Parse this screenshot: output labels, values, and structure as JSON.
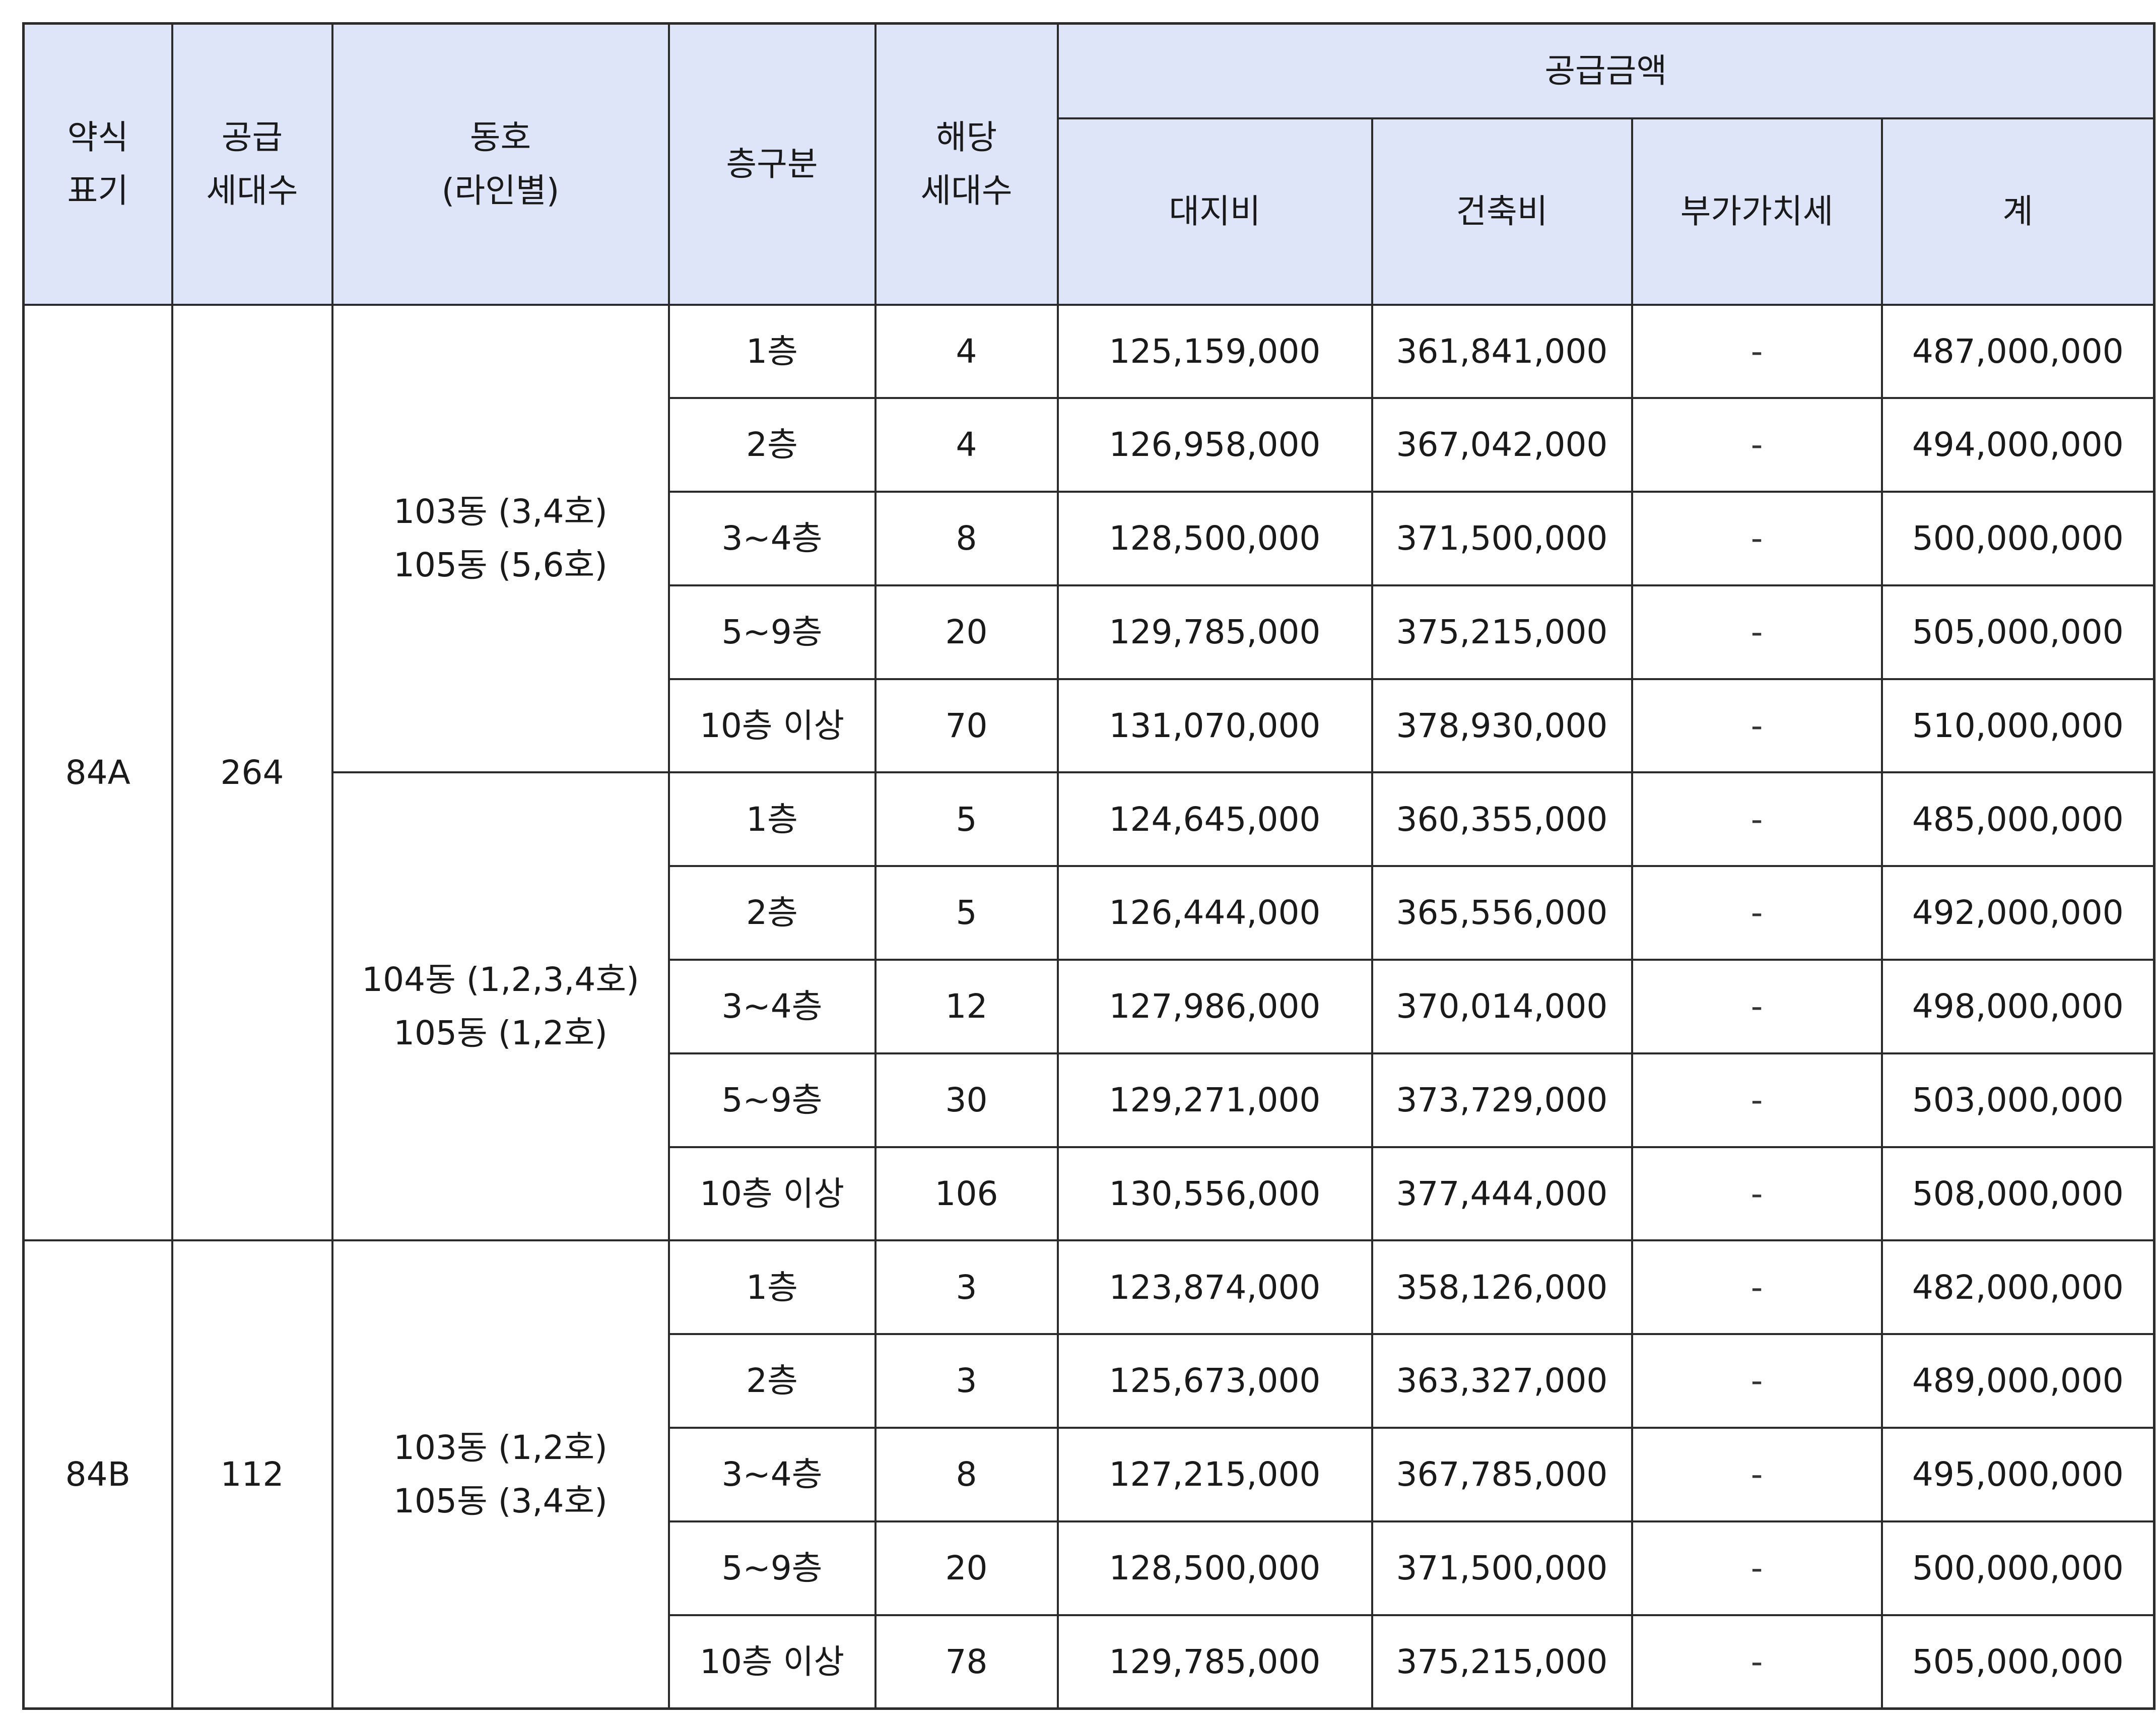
{
  "header": {
    "type_label_line1": "약식",
    "type_label_line2": "표기",
    "supply_units_line1": "공급",
    "supply_units_line2": "세대수",
    "building_line1": "동호",
    "building_line2": "(라인별)",
    "floor_group": "층구분",
    "applicable_units_line1": "해당",
    "applicable_units_line2": "세대수",
    "supply_price": "공급금액",
    "land_cost": "대지비",
    "construction_cost": "건축비",
    "vat": "부가가치세",
    "total": "계"
  },
  "types": [
    {
      "type": "84A",
      "supply_units": "264",
      "groups": [
        {
          "building_line1": "103동 (3,4호)",
          "building_line2": "105동 (5,6호)",
          "rows": [
            {
              "floor": "1층",
              "units": "4",
              "land": "125,159,000",
              "construction": "361,841,000",
              "vat": "-",
              "total": "487,000,000"
            },
            {
              "floor": "2층",
              "units": "4",
              "land": "126,958,000",
              "construction": "367,042,000",
              "vat": "-",
              "total": "494,000,000"
            },
            {
              "floor": "3~4층",
              "units": "8",
              "land": "128,500,000",
              "construction": "371,500,000",
              "vat": "-",
              "total": "500,000,000"
            },
            {
              "floor": "5~9층",
              "units": "20",
              "land": "129,785,000",
              "construction": "375,215,000",
              "vat": "-",
              "total": "505,000,000"
            },
            {
              "floor": "10층 이상",
              "units": "70",
              "land": "131,070,000",
              "construction": "378,930,000",
              "vat": "-",
              "total": "510,000,000"
            }
          ]
        },
        {
          "building_line1": "104동 (1,2,3,4호)",
          "building_line2": "105동 (1,2호)",
          "rows": [
            {
              "floor": "1층",
              "units": "5",
              "land": "124,645,000",
              "construction": "360,355,000",
              "vat": "-",
              "total": "485,000,000"
            },
            {
              "floor": "2층",
              "units": "5",
              "land": "126,444,000",
              "construction": "365,556,000",
              "vat": "-",
              "total": "492,000,000"
            },
            {
              "floor": "3~4층",
              "units": "12",
              "land": "127,986,000",
              "construction": "370,014,000",
              "vat": "-",
              "total": "498,000,000"
            },
            {
              "floor": "5~9층",
              "units": "30",
              "land": "129,271,000",
              "construction": "373,729,000",
              "vat": "-",
              "total": "503,000,000"
            },
            {
              "floor": "10층 이상",
              "units": "106",
              "land": "130,556,000",
              "construction": "377,444,000",
              "vat": "-",
              "total": "508,000,000"
            }
          ]
        }
      ]
    },
    {
      "type": "84B",
      "supply_units": "112",
      "groups": [
        {
          "building_line1": "103동 (1,2호)",
          "building_line2": "105동 (3,4호)",
          "rows": [
            {
              "floor": "1층",
              "units": "3",
              "land": "123,874,000",
              "construction": "358,126,000",
              "vat": "-",
              "total": "482,000,000"
            },
            {
              "floor": "2층",
              "units": "3",
              "land": "125,673,000",
              "construction": "363,327,000",
              "vat": "-",
              "total": "489,000,000"
            },
            {
              "floor": "3~4층",
              "units": "8",
              "land": "127,215,000",
              "construction": "367,785,000",
              "vat": "-",
              "total": "495,000,000"
            },
            {
              "floor": "5~9층",
              "units": "20",
              "land": "128,500,000",
              "construction": "371,500,000",
              "vat": "-",
              "total": "500,000,000"
            },
            {
              "floor": "10층 이상",
              "units": "78",
              "land": "129,785,000",
              "construction": "375,215,000",
              "vat": "-",
              "total": "505,000,000"
            }
          ]
        }
      ]
    }
  ]
}
